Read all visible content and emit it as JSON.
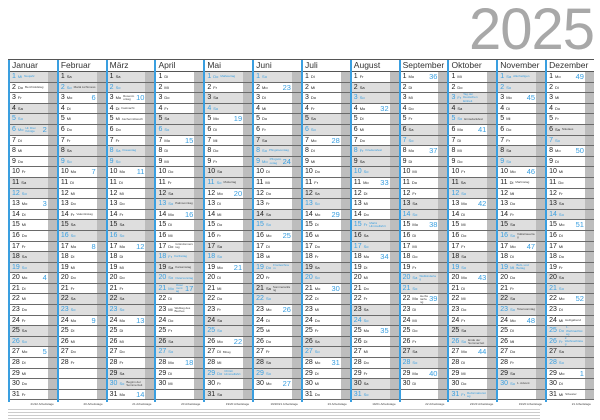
{
  "year": "2025",
  "weekday_labels": [
    "So",
    "Mo",
    "Di",
    "Mi",
    "Do",
    "Fr",
    "Sa"
  ],
  "colors": {
    "accent": "#3a9fe0",
    "weekend_bg": "#dedede",
    "strip": "#bdbdbd",
    "year": "#a8a8a8"
  },
  "months": [
    {
      "name": "Januar",
      "days": 31,
      "workdays": "21/22 Arbeitstage"
    },
    {
      "name": "Februar",
      "days": 28,
      "workdays": "20 Arbeitstage"
    },
    {
      "name": "März",
      "days": 31,
      "workdays": "21 Arbeitstage"
    },
    {
      "name": "April",
      "days": 30,
      "workdays": "20 Arbeitstage"
    },
    {
      "name": "Mai",
      "days": 31,
      "workdays": "19/20 Arbeitstage"
    },
    {
      "name": "Juni",
      "days": 30,
      "workdays": "19/20/21 Arbeitstage"
    },
    {
      "name": "Juli",
      "days": 31,
      "workdays": "23 Arbeitstage"
    },
    {
      "name": "August",
      "days": 31,
      "workdays": "19/21 Arbeitstage"
    },
    {
      "name": "September",
      "days": 30,
      "workdays": "22 Arbeitstage"
    },
    {
      "name": "Oktober",
      "days": 31,
      "workdays": "22/23 Arbeitstage"
    },
    {
      "name": "November",
      "days": 30,
      "workdays": "19/20 Arbeitstage"
    },
    {
      "name": "Dezember",
      "days": 31,
      "workdays": "21 Arbeitstage"
    }
  ],
  "holidays": [
    {
      "m": 1,
      "d": 1,
      "name": "Neujahr"
    },
    {
      "m": 1,
      "d": 6,
      "name": "Hl. Drei Könige"
    },
    {
      "m": 3,
      "d": 8,
      "name": "Frauentag"
    },
    {
      "m": 4,
      "d": 18,
      "name": "Karfreitag"
    },
    {
      "m": 4,
      "d": 20,
      "name": "Ostersonntag"
    },
    {
      "m": 4,
      "d": 21,
      "name": "Ostermontag"
    },
    {
      "m": 5,
      "d": 1,
      "name": "Maifeiertag"
    },
    {
      "m": 5,
      "d": 29,
      "name": "Christi Himmelfahrt"
    },
    {
      "m": 6,
      "d": 8,
      "name": "Pfingstsonntag"
    },
    {
      "m": 6,
      "d": 9,
      "name": "Pfingstmontag"
    },
    {
      "m": 6,
      "d": 19,
      "name": "Fronleichnam"
    },
    {
      "m": 8,
      "d": 8,
      "name": "Friedensfest"
    },
    {
      "m": 8,
      "d": 15,
      "name": "Mariä Himmelfahrt"
    },
    {
      "m": 9,
      "d": 20,
      "name": "Weltkindertag"
    },
    {
      "m": 10,
      "d": 3,
      "name": "Tag der Deutschen Einheit"
    },
    {
      "m": 10,
      "d": 31,
      "name": "Reformationstag"
    },
    {
      "m": 11,
      "d": 1,
      "name": "Allerheiligen"
    },
    {
      "m": 11,
      "d": 19,
      "name": "Buß- und Bettag"
    },
    {
      "m": 12,
      "d": 25,
      "name": "1. Weihnachtstag"
    },
    {
      "m": 12,
      "d": 26,
      "name": "2. Weihnachtstag"
    }
  ],
  "notes": [
    {
      "m": 1,
      "d": 2,
      "name": "Berchtoldstag"
    },
    {
      "m": 2,
      "d": 2,
      "name": "Mariä Lichtmess"
    },
    {
      "m": 2,
      "d": 14,
      "name": "Valentinstag"
    },
    {
      "m": 3,
      "d": 3,
      "name": "Rosenmontag"
    },
    {
      "m": 3,
      "d": 4,
      "name": "Fastnacht"
    },
    {
      "m": 3,
      "d": 5,
      "name": "Aschermittwoch"
    },
    {
      "m": 3,
      "d": 30,
      "name": "Beginn der Sommerzeit"
    },
    {
      "m": 4,
      "d": 13,
      "name": "Palmsonntag"
    },
    {
      "m": 4,
      "d": 17,
      "name": "Gründonnerstag"
    },
    {
      "m": 4,
      "d": 19,
      "name": "Karsamstag"
    },
    {
      "m": 4,
      "d": 23,
      "name": "Welttag des Buches"
    },
    {
      "m": 5,
      "d": 11,
      "name": "Muttertag"
    },
    {
      "m": 5,
      "d": 27,
      "name": "Bittag"
    },
    {
      "m": 6,
      "d": 21,
      "name": "Sommeranfang"
    },
    {
      "m": 9,
      "d": 22,
      "name": "Herbstanfang"
    },
    {
      "m": 10,
      "d": 5,
      "name": "Erntedankfest"
    },
    {
      "m": 10,
      "d": 26,
      "name": "Ende der Sommerzeit"
    },
    {
      "m": 11,
      "d": 11,
      "name": "Martinstag"
    },
    {
      "m": 11,
      "d": 16,
      "name": "Volkstrauertag"
    },
    {
      "m": 11,
      "d": 23,
      "name": "Totensonntag"
    },
    {
      "m": 11,
      "d": 30,
      "name": "1. Advent"
    },
    {
      "m": 12,
      "d": 6,
      "name": "Nikolaus"
    },
    {
      "m": 12,
      "d": 24,
      "name": "Heiligabend"
    },
    {
      "m": 12,
      "d": 31,
      "name": "Silvester"
    }
  ]
}
